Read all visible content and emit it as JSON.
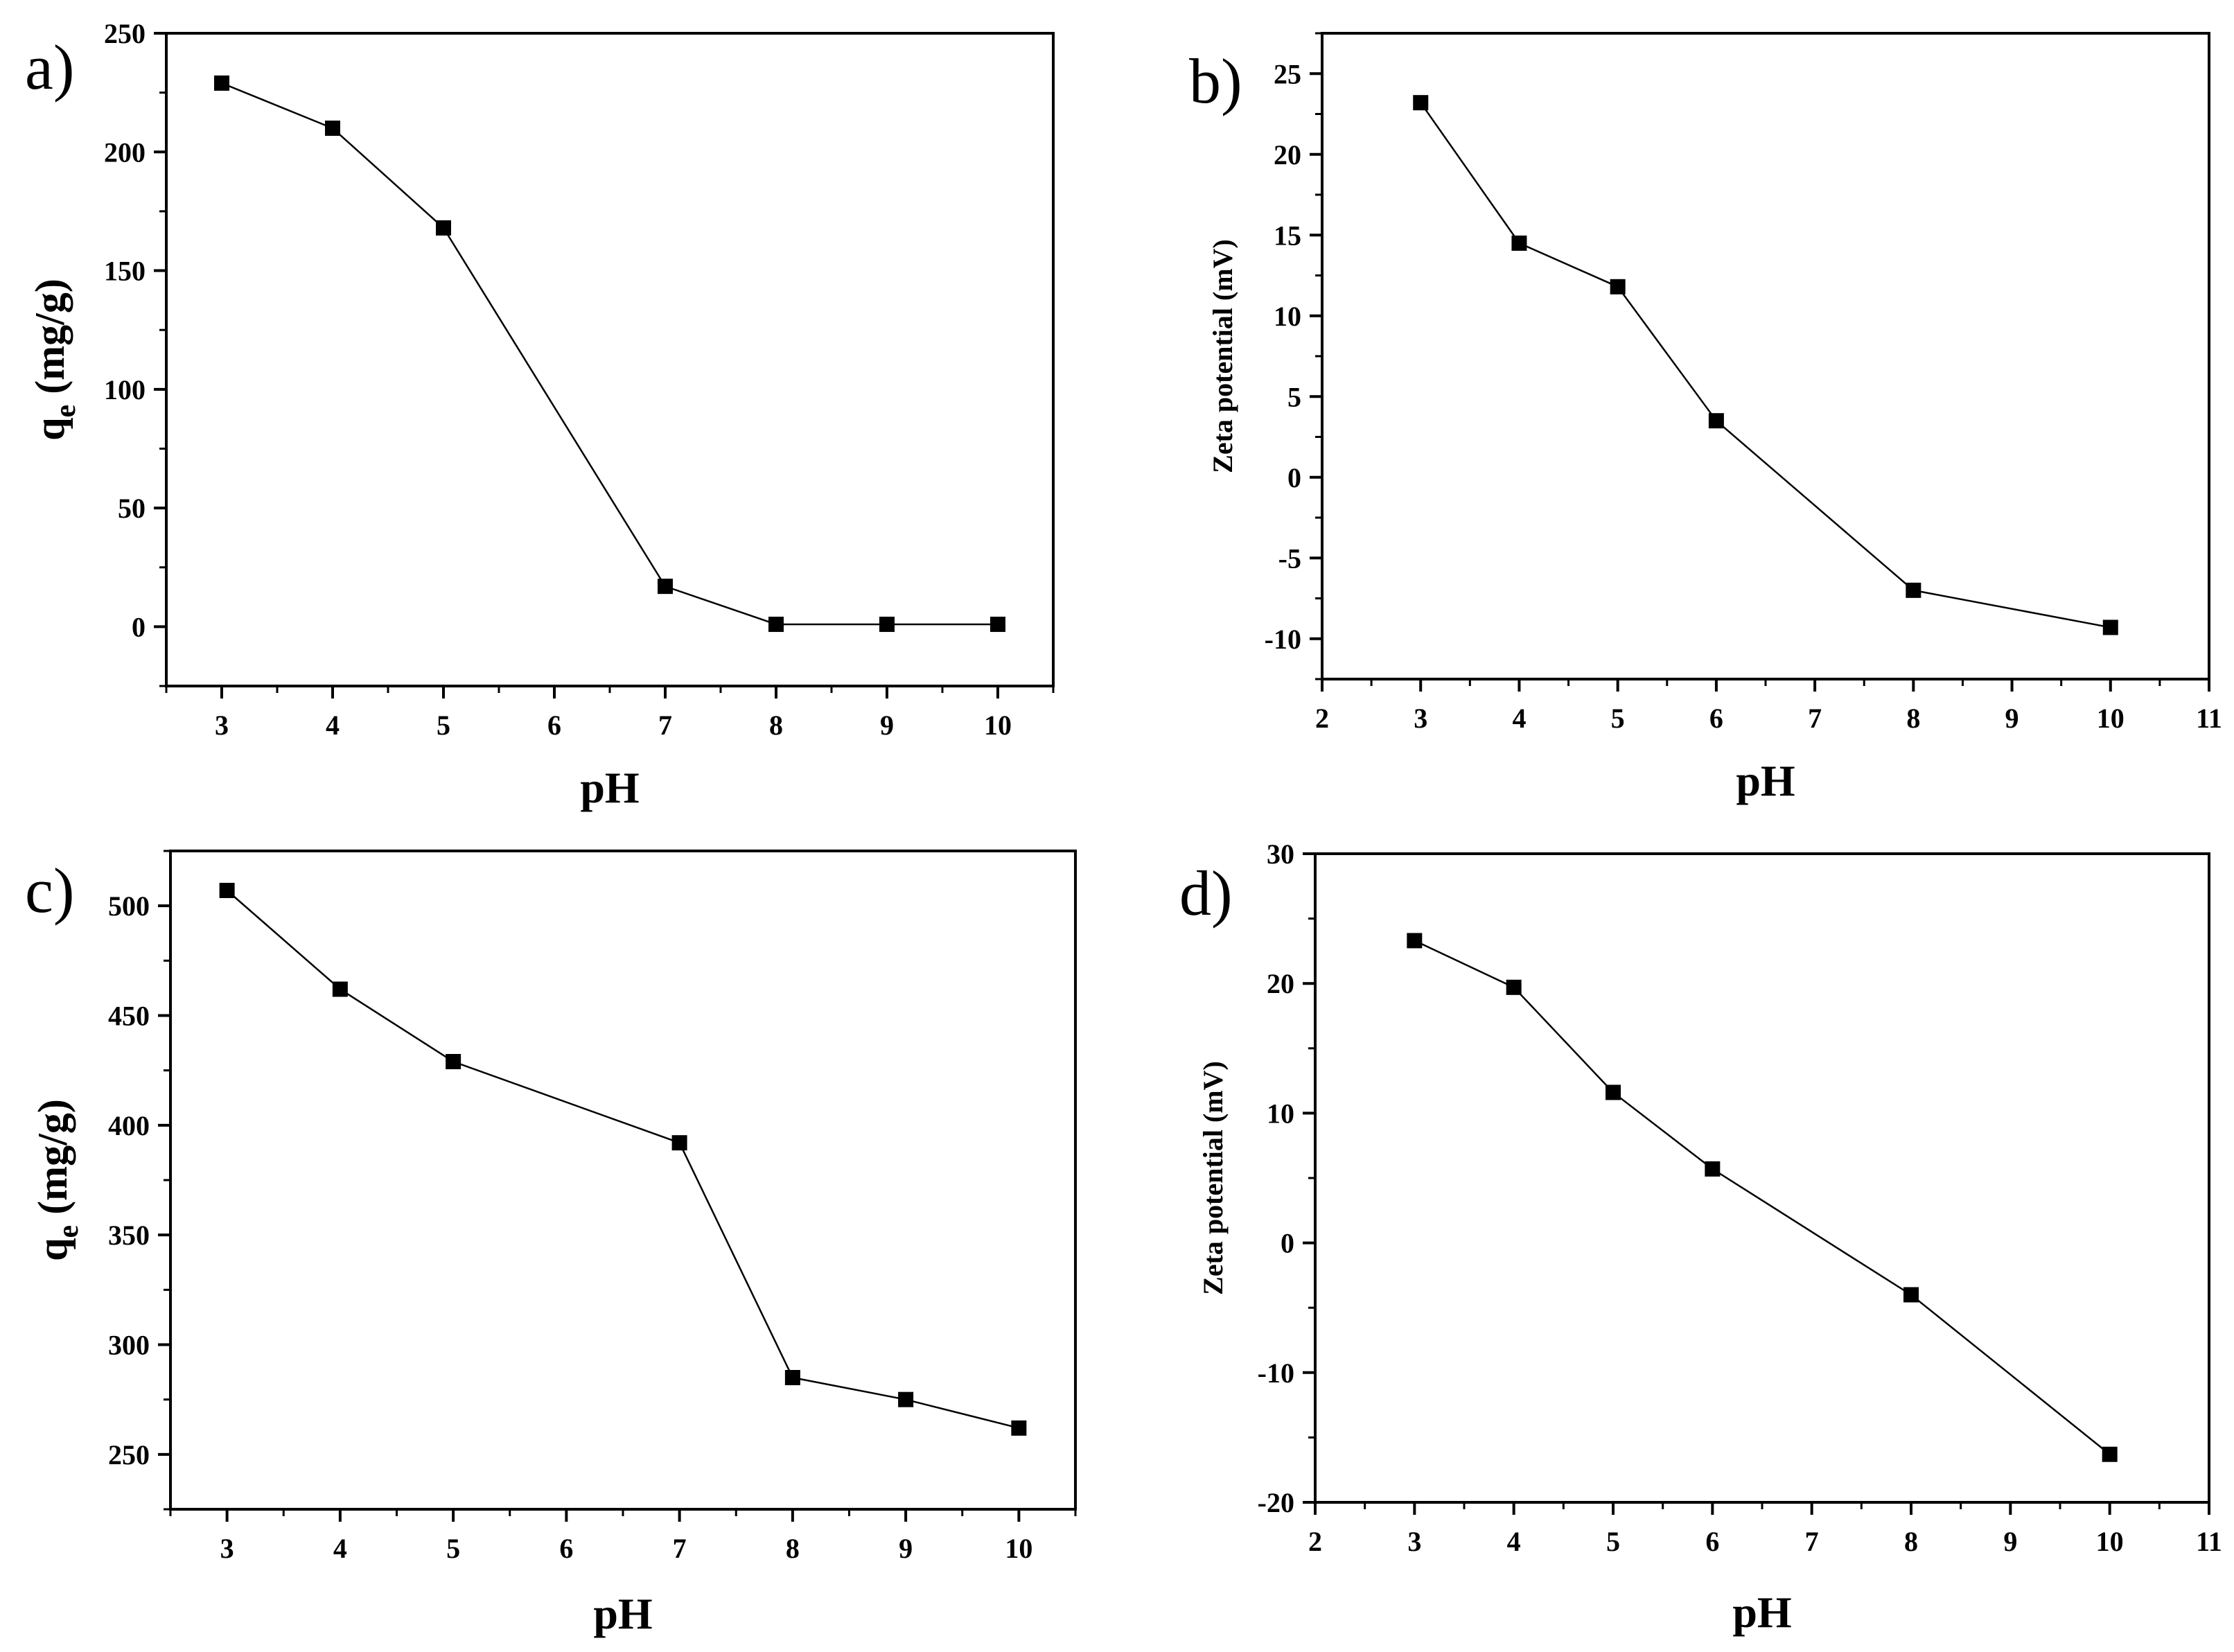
{
  "chart_data": [
    {
      "panel": "a)",
      "type": "line",
      "xlabel": "pH",
      "ylabel": "q",
      "ylabel_sub": "e",
      "ylabel_unit": " (mg/g)",
      "xlim": [
        2.5,
        10.5
      ],
      "ylim": [
        -25,
        250
      ],
      "xticks": [
        3,
        4,
        5,
        6,
        7,
        8,
        9,
        10
      ],
      "yticks": [
        0,
        50,
        100,
        150,
        200,
        250
      ],
      "x": [
        3,
        4,
        5,
        7,
        8,
        9,
        10
      ],
      "y": [
        229,
        210,
        168,
        17,
        1,
        1,
        1
      ]
    },
    {
      "panel": "b)",
      "type": "line",
      "xlabel": "pH",
      "ylabel": "Zeta potential (mV)",
      "xlim": [
        2,
        11
      ],
      "ylim": [
        -12.5,
        27.5
      ],
      "xticks": [
        2,
        3,
        4,
        5,
        6,
        7,
        8,
        9,
        10,
        11
      ],
      "yticks": [
        -10,
        -5,
        0,
        5,
        10,
        15,
        20,
        25
      ],
      "x": [
        3,
        4,
        5,
        6,
        8,
        10
      ],
      "y": [
        23.2,
        14.5,
        11.8,
        3.5,
        -7,
        -9.3
      ]
    },
    {
      "panel": "c)",
      "type": "line",
      "xlabel": "pH",
      "ylabel": "q",
      "ylabel_sub": "e",
      "ylabel_unit": " (mg/g)",
      "xlim": [
        2.5,
        10.5
      ],
      "ylim": [
        225,
        525
      ],
      "xticks": [
        3,
        4,
        5,
        6,
        7,
        8,
        9,
        10
      ],
      "yticks": [
        250,
        300,
        350,
        400,
        450,
        500
      ],
      "x": [
        3,
        4,
        5,
        7,
        8,
        9,
        10
      ],
      "y": [
        507,
        462,
        429,
        392,
        285,
        275,
        262
      ]
    },
    {
      "panel": "d)",
      "type": "line",
      "xlabel": "pH",
      "ylabel": "Zeta potential (mV)",
      "xlim": [
        2,
        11
      ],
      "ylim": [
        -20,
        30
      ],
      "xticks": [
        2,
        3,
        4,
        5,
        6,
        7,
        8,
        9,
        10,
        11
      ],
      "yticks": [
        -20,
        -10,
        0,
        10,
        20,
        30
      ],
      "x": [
        3,
        4,
        5,
        6,
        8,
        10
      ],
      "y": [
        23.3,
        19.7,
        11.6,
        5.7,
        -4,
        -16.3
      ]
    }
  ]
}
